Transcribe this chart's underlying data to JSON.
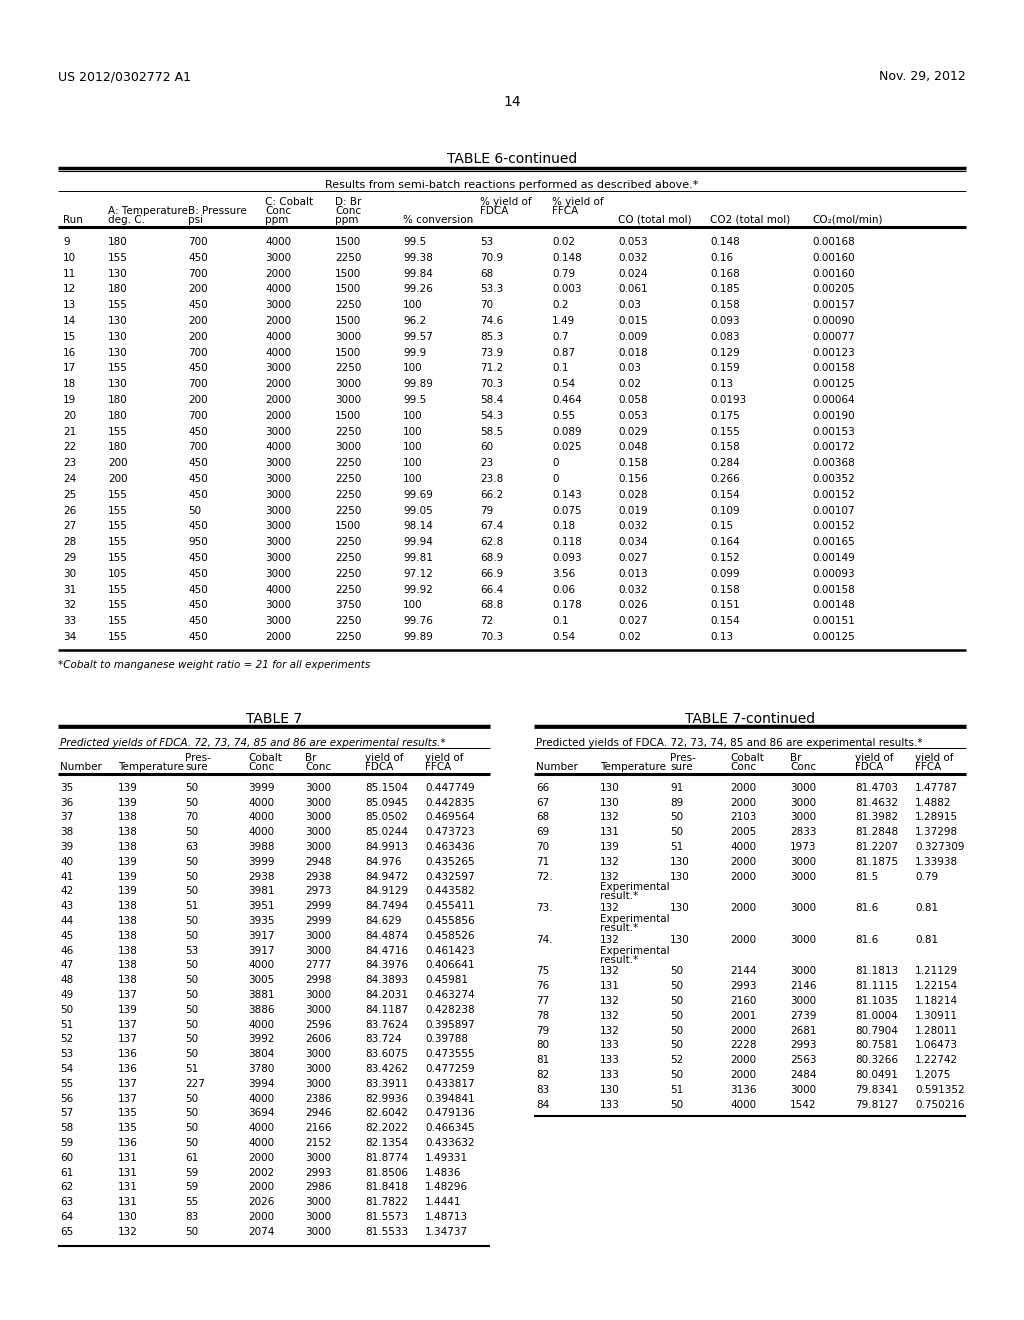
{
  "header_left": "US 2012/0302772 A1",
  "header_right": "Nov. 29, 2012",
  "page_number": "14",
  "table6_title": "TABLE 6-continued",
  "table6_subtitle": "Results from semi-batch reactions performed as described above.*",
  "table6_col_headers_line1": [
    "",
    "A: Temperature",
    "B: Pressure",
    "C: Cobalt",
    "D: Br",
    "",
    "% yield of",
    "% yield of",
    "",
    "",
    ""
  ],
  "table6_col_headers_line2": [
    "",
    "",
    "",
    "Conc",
    "Conc",
    "",
    "FDCA",
    "FFCA",
    "",
    "",
    ""
  ],
  "table6_col_headers_line3": [
    "Run",
    "deg. C.",
    "psi",
    "ppm",
    "ppm",
    "% conversion",
    "",
    "",
    "CO (total mol)",
    "CO2 (total mol)",
    "CO₂(mol/min)"
  ],
  "table6_data": [
    [
      "9",
      "180",
      "700",
      "4000",
      "1500",
      "99.5",
      "53",
      "0.02",
      "0.053",
      "0.148",
      "0.00168"
    ],
    [
      "10",
      "155",
      "450",
      "3000",
      "2250",
      "99.38",
      "70.9",
      "0.148",
      "0.032",
      "0.16",
      "0.00160"
    ],
    [
      "11",
      "130",
      "700",
      "2000",
      "1500",
      "99.84",
      "68",
      "0.79",
      "0.024",
      "0.168",
      "0.00160"
    ],
    [
      "12",
      "180",
      "200",
      "4000",
      "1500",
      "99.26",
      "53.3",
      "0.003",
      "0.061",
      "0.185",
      "0.00205"
    ],
    [
      "13",
      "155",
      "450",
      "3000",
      "2250",
      "100",
      "70",
      "0.2",
      "0.03",
      "0.158",
      "0.00157"
    ],
    [
      "14",
      "130",
      "200",
      "2000",
      "1500",
      "96.2",
      "74.6",
      "1.49",
      "0.015",
      "0.093",
      "0.00090"
    ],
    [
      "15",
      "130",
      "200",
      "4000",
      "3000",
      "99.57",
      "85.3",
      "0.7",
      "0.009",
      "0.083",
      "0.00077"
    ],
    [
      "16",
      "130",
      "700",
      "4000",
      "1500",
      "99.9",
      "73.9",
      "0.87",
      "0.018",
      "0.129",
      "0.00123"
    ],
    [
      "17",
      "155",
      "450",
      "3000",
      "2250",
      "100",
      "71.2",
      "0.1",
      "0.03",
      "0.159",
      "0.00158"
    ],
    [
      "18",
      "130",
      "700",
      "2000",
      "3000",
      "99.89",
      "70.3",
      "0.54",
      "0.02",
      "0.13",
      "0.00125"
    ],
    [
      "19",
      "180",
      "200",
      "2000",
      "3000",
      "99.5",
      "58.4",
      "0.464",
      "0.058",
      "0.0193",
      "0.00064"
    ],
    [
      "20",
      "180",
      "700",
      "2000",
      "1500",
      "100",
      "54.3",
      "0.55",
      "0.053",
      "0.175",
      "0.00190"
    ],
    [
      "21",
      "155",
      "450",
      "3000",
      "2250",
      "100",
      "58.5",
      "0.089",
      "0.029",
      "0.155",
      "0.00153"
    ],
    [
      "22",
      "180",
      "700",
      "4000",
      "3000",
      "100",
      "60",
      "0.025",
      "0.048",
      "0.158",
      "0.00172"
    ],
    [
      "23",
      "200",
      "450",
      "3000",
      "2250",
      "100",
      "23",
      "0",
      "0.158",
      "0.284",
      "0.00368"
    ],
    [
      "24",
      "200",
      "450",
      "3000",
      "2250",
      "100",
      "23.8",
      "0",
      "0.156",
      "0.266",
      "0.00352"
    ],
    [
      "25",
      "155",
      "450",
      "3000",
      "2250",
      "99.69",
      "66.2",
      "0.143",
      "0.028",
      "0.154",
      "0.00152"
    ],
    [
      "26",
      "155",
      "50",
      "3000",
      "2250",
      "99.05",
      "79",
      "0.075",
      "0.019",
      "0.109",
      "0.00107"
    ],
    [
      "27",
      "155",
      "450",
      "3000",
      "1500",
      "98.14",
      "67.4",
      "0.18",
      "0.032",
      "0.15",
      "0.00152"
    ],
    [
      "28",
      "155",
      "950",
      "3000",
      "2250",
      "99.94",
      "62.8",
      "0.118",
      "0.034",
      "0.164",
      "0.00165"
    ],
    [
      "29",
      "155",
      "450",
      "3000",
      "2250",
      "99.81",
      "68.9",
      "0.093",
      "0.027",
      "0.152",
      "0.00149"
    ],
    [
      "30",
      "105",
      "450",
      "3000",
      "2250",
      "97.12",
      "66.9",
      "3.56",
      "0.013",
      "0.099",
      "0.00093"
    ],
    [
      "31",
      "155",
      "450",
      "4000",
      "2250",
      "99.92",
      "66.4",
      "0.06",
      "0.032",
      "0.158",
      "0.00158"
    ],
    [
      "32",
      "155",
      "450",
      "3000",
      "3750",
      "100",
      "68.8",
      "0.178",
      "0.026",
      "0.151",
      "0.00148"
    ],
    [
      "33",
      "155",
      "450",
      "3000",
      "2250",
      "99.76",
      "72",
      "0.1",
      "0.027",
      "0.154",
      "0.00151"
    ],
    [
      "34",
      "155",
      "450",
      "2000",
      "2250",
      "99.89",
      "70.3",
      "0.54",
      "0.02",
      "0.13",
      "0.00125"
    ]
  ],
  "table6_footnote": "*Cobalt to manganese weight ratio = 21 for all experiments",
  "table7_title": "TABLE 7",
  "table7cont_title": "TABLE 7-continued",
  "table7_subtitle": "Predicted yields of FDCA. 72, 73, 74, 85 and 86 are experimental results.*",
  "table7_data": [
    [
      "35",
      "139",
      "50",
      "3999",
      "3000",
      "85.1504",
      "0.447749"
    ],
    [
      "36",
      "139",
      "50",
      "4000",
      "3000",
      "85.0945",
      "0.442835"
    ],
    [
      "37",
      "138",
      "70",
      "4000",
      "3000",
      "85.0502",
      "0.469564"
    ],
    [
      "38",
      "138",
      "50",
      "4000",
      "3000",
      "85.0244",
      "0.473723"
    ],
    [
      "39",
      "138",
      "63",
      "3988",
      "3000",
      "84.9913",
      "0.463436"
    ],
    [
      "40",
      "139",
      "50",
      "3999",
      "2948",
      "84.976",
      "0.435265"
    ],
    [
      "41",
      "139",
      "50",
      "2938",
      "2938",
      "84.9472",
      "0.432597"
    ],
    [
      "42",
      "139",
      "50",
      "3981",
      "2973",
      "84.9129",
      "0.443582"
    ],
    [
      "43",
      "138",
      "51",
      "3951",
      "2999",
      "84.7494",
      "0.455411"
    ],
    [
      "44",
      "138",
      "50",
      "3935",
      "2999",
      "84.629",
      "0.455856"
    ],
    [
      "45",
      "138",
      "50",
      "3917",
      "3000",
      "84.4874",
      "0.458526"
    ],
    [
      "46",
      "138",
      "53",
      "3917",
      "3000",
      "84.4716",
      "0.461423"
    ],
    [
      "47",
      "138",
      "50",
      "4000",
      "2777",
      "84.3976",
      "0.406641"
    ],
    [
      "48",
      "138",
      "50",
      "3005",
      "2998",
      "84.3893",
      "0.45981"
    ],
    [
      "49",
      "137",
      "50",
      "3881",
      "3000",
      "84.2031",
      "0.463274"
    ],
    [
      "50",
      "139",
      "50",
      "3886",
      "3000",
      "84.1187",
      "0.428238"
    ],
    [
      "51",
      "137",
      "50",
      "4000",
      "2596",
      "83.7624",
      "0.395897"
    ],
    [
      "52",
      "137",
      "50",
      "3992",
      "2606",
      "83.724",
      "0.39788"
    ],
    [
      "53",
      "136",
      "50",
      "3804",
      "3000",
      "83.6075",
      "0.473555"
    ],
    [
      "54",
      "136",
      "51",
      "3780",
      "3000",
      "83.4262",
      "0.477259"
    ],
    [
      "55",
      "137",
      "227",
      "3994",
      "3000",
      "83.3911",
      "0.433817"
    ],
    [
      "56",
      "137",
      "50",
      "4000",
      "2386",
      "82.9936",
      "0.394841"
    ],
    [
      "57",
      "135",
      "50",
      "3694",
      "2946",
      "82.6042",
      "0.479136"
    ],
    [
      "58",
      "135",
      "50",
      "4000",
      "2166",
      "82.2022",
      "0.466345"
    ],
    [
      "59",
      "136",
      "50",
      "4000",
      "2152",
      "82.1354",
      "0.433632"
    ],
    [
      "60",
      "131",
      "61",
      "2000",
      "3000",
      "81.8774",
      "1.49331"
    ],
    [
      "61",
      "131",
      "59",
      "2002",
      "2993",
      "81.8506",
      "1.4836"
    ],
    [
      "62",
      "131",
      "59",
      "2000",
      "2986",
      "81.8418",
      "1.48296"
    ],
    [
      "63",
      "131",
      "55",
      "2026",
      "3000",
      "81.7822",
      "1.4441"
    ],
    [
      "64",
      "130",
      "83",
      "2000",
      "3000",
      "81.5573",
      "1.48713"
    ],
    [
      "65",
      "132",
      "50",
      "2074",
      "3000",
      "81.5533",
      "1.34737"
    ]
  ],
  "table7cont_data": [
    [
      "66",
      "130",
      "91",
      "2000",
      "3000",
      "81.4703",
      "1.47787"
    ],
    [
      "67",
      "130",
      "89",
      "2000",
      "3000",
      "81.4632",
      "1.4882"
    ],
    [
      "68",
      "132",
      "50",
      "2103",
      "3000",
      "81.3982",
      "1.28915"
    ],
    [
      "69",
      "131",
      "50",
      "2005",
      "2833",
      "81.2848",
      "1.37298"
    ],
    [
      "70",
      "139",
      "51",
      "4000",
      "1973",
      "81.2207",
      "0.327309"
    ],
    [
      "71",
      "132",
      "130",
      "2000",
      "3000",
      "81.1875",
      "1.33938"
    ],
    [
      "72.",
      "132",
      "130",
      "2000",
      "3000",
      "81.5",
      "0.79"
    ],
    [
      "73.",
      "132",
      "130",
      "2000",
      "3000",
      "81.6",
      "0.81"
    ],
    [
      "74.",
      "132",
      "130",
      "2000",
      "3000",
      "81.6",
      "0.81"
    ],
    [
      "75",
      "132",
      "50",
      "2144",
      "3000",
      "81.1813",
      "1.21129"
    ],
    [
      "76",
      "131",
      "50",
      "2993",
      "2146",
      "81.1115",
      "1.22154"
    ],
    [
      "77",
      "132",
      "50",
      "2160",
      "3000",
      "81.1035",
      "1.18214"
    ],
    [
      "78",
      "132",
      "50",
      "2001",
      "2739",
      "81.0004",
      "1.30911"
    ],
    [
      "79",
      "132",
      "50",
      "2000",
      "2681",
      "80.7904",
      "1.28011"
    ],
    [
      "80",
      "133",
      "50",
      "2228",
      "2993",
      "80.7581",
      "1.06473"
    ],
    [
      "81",
      "133",
      "52",
      "2000",
      "2563",
      "80.3266",
      "1.22742"
    ],
    [
      "82",
      "133",
      "50",
      "2000",
      "2484",
      "80.0491",
      "1.2075"
    ],
    [
      "83",
      "130",
      "51",
      "3136",
      "3000",
      "79.8341",
      "0.591352"
    ],
    [
      "84",
      "133",
      "50",
      "4000",
      "1542",
      "79.8127",
      "0.750216"
    ]
  ],
  "bg_color": "#ffffff"
}
